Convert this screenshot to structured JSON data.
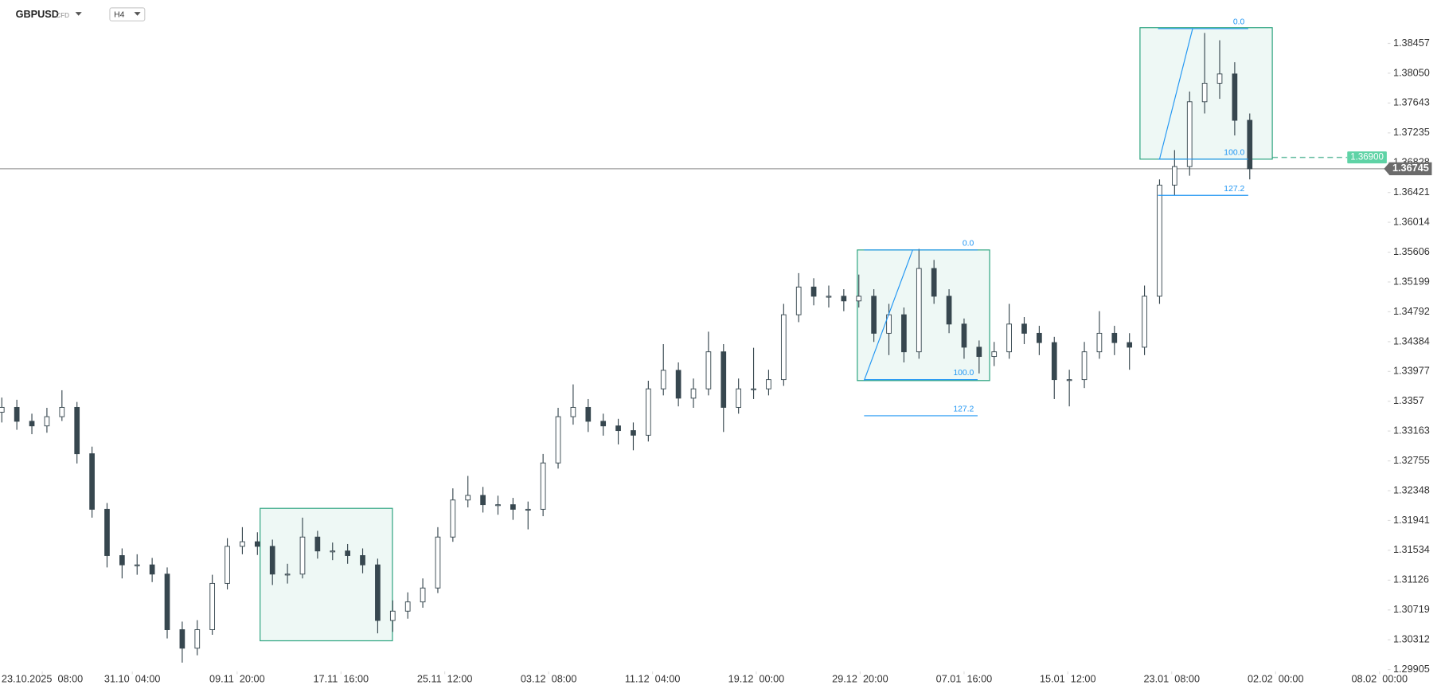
{
  "chart_data": {
    "type": "candlestick",
    "symbol": "GBPUSD",
    "instrument_type": "CFD",
    "timeframe": "H4",
    "up_color": "#ffffff",
    "down_color": "#37474f",
    "zone_color": "#26a17b",
    "fib_color": "#2196f3",
    "grid": false,
    "x": [
      0,
      1,
      2,
      3,
      4,
      5,
      6,
      7,
      8,
      9,
      10,
      11,
      12,
      13,
      14,
      15,
      16,
      17,
      18,
      19,
      20,
      21,
      22,
      23,
      24,
      25,
      26,
      27,
      28,
      29,
      30,
      31,
      32,
      33,
      34,
      35,
      36,
      37,
      38,
      39,
      40,
      41,
      42,
      43,
      44,
      45,
      46,
      47,
      48,
      49,
      50,
      51,
      52,
      53,
      54,
      55,
      56,
      57,
      58,
      59,
      60,
      61,
      62,
      63,
      64,
      65,
      66,
      67,
      68,
      69,
      70,
      71,
      72,
      73,
      74,
      75,
      76,
      77,
      78,
      79,
      80,
      81,
      82,
      83
    ],
    "open": [
      1.3342,
      1.33486,
      1.33296,
      1.33233,
      1.33359,
      1.33486,
      1.32853,
      1.32094,
      1.31462,
      1.31335,
      1.31335,
      1.31209,
      1.3045,
      1.30197,
      1.3045,
      1.31082,
      1.31588,
      1.31651,
      1.31588,
      1.31209,
      1.31209,
      1.31715,
      1.31525,
      1.31525,
      1.31462,
      1.31335,
      1.30576,
      1.30703,
      1.30829,
      1.31019,
      1.31715,
      1.32221,
      1.32284,
      1.32157,
      1.32157,
      1.32094,
      1.32094,
      1.32727,
      1.33359,
      1.33486,
      1.33296,
      1.33233,
      1.33169,
      1.33106,
      1.33739,
      1.33992,
      1.33612,
      1.33739,
      1.34245,
      1.33486,
      1.33739,
      1.33739,
      1.33865,
      1.34751,
      1.3513,
      1.35004,
      1.35004,
      1.3494,
      1.35004,
      1.34498,
      1.34751,
      1.34245,
      1.35383,
      1.35004,
      1.34624,
      1.34308,
      1.34181,
      1.34245,
      1.34624,
      1.34498,
      1.34371,
      1.33865,
      1.33865,
      1.34245,
      1.34498,
      1.34371,
      1.34308,
      1.35004,
      1.36522,
      1.36775,
      1.3766,
      1.37913,
      1.3804,
      1.37407
    ],
    "high": [
      1.3362,
      1.3359,
      1.334,
      1.3348,
      1.3372,
      1.3356,
      1.3295,
      1.3218,
      1.3156,
      1.3148,
      1.3143,
      1.313,
      1.3056,
      1.3058,
      1.312,
      1.317,
      1.3185,
      1.3178,
      1.3168,
      1.3135,
      1.3198,
      1.318,
      1.3164,
      1.3162,
      1.3156,
      1.3142,
      1.3085,
      1.3096,
      1.3115,
      1.3185,
      1.3238,
      1.3255,
      1.324,
      1.3228,
      1.3225,
      1.322,
      1.3285,
      1.3348,
      1.338,
      1.336,
      1.334,
      1.3333,
      1.3328,
      1.3385,
      1.3435,
      1.341,
      1.3388,
      1.3452,
      1.3435,
      1.3388,
      1.343,
      1.34,
      1.349,
      1.3532,
      1.3525,
      1.3515,
      1.351,
      1.353,
      1.351,
      1.349,
      1.3485,
      1.3565,
      1.355,
      1.351,
      1.347,
      1.344,
      1.3438,
      1.349,
      1.3472,
      1.346,
      1.3445,
      1.34,
      1.3438,
      1.348,
      1.346,
      1.345,
      1.3515,
      1.366,
      1.37,
      1.378,
      1.386,
      1.385,
      1.382,
      1.375
    ],
    "low": [
      1.3328,
      1.3318,
      1.3312,
      1.3314,
      1.333,
      1.3272,
      1.3198,
      1.313,
      1.3115,
      1.312,
      1.311,
      1.3033,
      1.3,
      1.301,
      1.3038,
      1.31,
      1.3148,
      1.3147,
      1.3106,
      1.3108,
      1.3115,
      1.3142,
      1.314,
      1.3135,
      1.3122,
      1.304,
      1.3042,
      1.306,
      1.3075,
      1.3095,
      1.3165,
      1.3212,
      1.3205,
      1.3202,
      1.3195,
      1.3182,
      1.32,
      1.3265,
      1.3325,
      1.3315,
      1.331,
      1.3298,
      1.329,
      1.3302,
      1.3365,
      1.335,
      1.3348,
      1.3365,
      1.3315,
      1.334,
      1.336,
      1.3365,
      1.3378,
      1.3465,
      1.3488,
      1.3485,
      1.348,
      1.3485,
      1.3438,
      1.342,
      1.341,
      1.3415,
      1.349,
      1.345,
      1.3415,
      1.3395,
      1.3405,
      1.3415,
      1.3435,
      1.342,
      1.336,
      1.335,
      1.3375,
      1.3415,
      1.342,
      1.34,
      1.342,
      1.349,
      1.3638,
      1.3665,
      1.375,
      1.377,
      1.372,
      1.366
    ],
    "close": [
      1.33486,
      1.33296,
      1.33233,
      1.33359,
      1.33486,
      1.32853,
      1.32094,
      1.31462,
      1.31335,
      1.31335,
      1.31209,
      1.3045,
      1.30197,
      1.3045,
      1.31082,
      1.31588,
      1.31651,
      1.31588,
      1.31209,
      1.31209,
      1.31715,
      1.31525,
      1.31525,
      1.31462,
      1.31335,
      1.30576,
      1.30703,
      1.30829,
      1.31019,
      1.31715,
      1.32221,
      1.32284,
      1.32157,
      1.32157,
      1.32094,
      1.32094,
      1.32727,
      1.33359,
      1.33486,
      1.33296,
      1.33233,
      1.33169,
      1.33106,
      1.33739,
      1.33992,
      1.33612,
      1.33739,
      1.34245,
      1.33486,
      1.33739,
      1.33739,
      1.33865,
      1.34751,
      1.3513,
      1.35004,
      1.35004,
      1.3494,
      1.35004,
      1.34498,
      1.34751,
      1.34245,
      1.35383,
      1.35004,
      1.34624,
      1.34308,
      1.34181,
      1.34245,
      1.34624,
      1.34498,
      1.34371,
      1.33865,
      1.33865,
      1.34245,
      1.34498,
      1.34371,
      1.34308,
      1.35004,
      1.36522,
      1.36775,
      1.3766,
      1.37913,
      1.3804,
      1.37407,
      1.36745
    ],
    "xlim": [
      -0.12,
      93
    ],
    "xticks": [
      {
        "value": 2.69,
        "label": "23.10.2025  08:00"
      },
      {
        "value": 8.68,
        "label": "31.10  04:00"
      },
      {
        "value": 15.65,
        "label": "09.11  20:00"
      },
      {
        "value": 22.56,
        "label": "17.11  16:00"
      },
      {
        "value": 29.46,
        "label": "25.11  12:00"
      },
      {
        "value": 36.37,
        "label": "03.12  08:00"
      },
      {
        "value": 43.28,
        "label": "11.12  04:00"
      },
      {
        "value": 50.18,
        "label": "19.12  00:00"
      },
      {
        "value": 57.09,
        "label": "29.12  20:00"
      },
      {
        "value": 64.0,
        "label": "07.01  16:00"
      },
      {
        "value": 70.9,
        "label": "15.01  12:00"
      },
      {
        "value": 77.81,
        "label": "23.01  08:00"
      },
      {
        "value": 84.72,
        "label": "02.02  00:00"
      },
      {
        "value": 91.63,
        "label": "08.02  00:00"
      }
    ],
    "ylim": [
      1.2988,
      1.3905
    ],
    "yticks": [
      1.38457,
      {
        "value": 1.3805,
        "label": "1.38050"
      },
      1.37643,
      1.37235,
      1.36828,
      1.36421,
      1.36014,
      1.35606,
      1.35199,
      1.34792,
      1.34384,
      1.33977,
      1.3357,
      1.33163,
      1.32755,
      1.32348,
      1.31941,
      1.31534,
      1.31126,
      1.30719,
      1.30312,
      1.29905
    ],
    "last_price": 1.36745,
    "alert_price": {
      "value": 1.369,
      "label": "1.36900"
    },
    "zones": [
      {
        "x": [
          17.18,
          25.98
        ],
        "y": [
          1.30298,
          1.32107
        ]
      },
      {
        "x": [
          56.9,
          65.7
        ],
        "y": [
          1.33852,
          1.35636
        ]
      },
      {
        "x": [
          75.7,
          84.5
        ],
        "y": [
          1.36876,
          1.38672
        ]
      }
    ],
    "trend_lines": [
      {
        "x": [
          57.35,
          60.58
        ],
        "y": [
          1.33852,
          1.35636
        ]
      },
      {
        "x": [
          77.0,
          79.2
        ],
        "y": [
          1.36876,
          1.38659
        ]
      }
    ],
    "fibs": [
      {
        "x": [
          57.35,
          64.9
        ],
        "levels": [
          {
            "label": "0.0",
            "value": 1.35636
          },
          {
            "label": "100.0",
            "value": 1.33865
          },
          {
            "label": "127.2",
            "value": 1.33372
          }
        ]
      },
      {
        "x": [
          76.9,
          82.9
        ],
        "levels": [
          {
            "label": "0.0",
            "value": 1.38659
          },
          {
            "label": "100.0",
            "value": 1.36876
          },
          {
            "label": "127.2",
            "value": 1.36382
          }
        ]
      }
    ]
  }
}
